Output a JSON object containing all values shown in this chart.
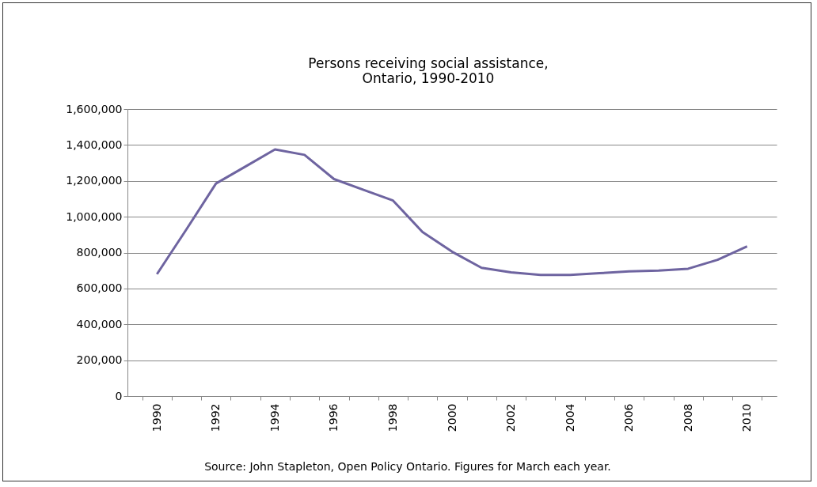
{
  "chart_data": {
    "type": "line",
    "title": "Persons receiving social assistance,\nOntario, 1990-2010",
    "categories": [
      "1990",
      null,
      "1992",
      null,
      "1994",
      null,
      "1996",
      null,
      "1998",
      null,
      "2000",
      null,
      "2002",
      null,
      "2004",
      null,
      "2006",
      null,
      "2008",
      null,
      "2010"
    ],
    "series": [
      {
        "color": "#6e64a0",
        "values": [
          680000,
          930000,
          1185000,
          1280000,
          1375000,
          1345000,
          1210000,
          1150000,
          1090000,
          915000,
          805000,
          715000,
          690000,
          675000,
          675000,
          685000,
          695000,
          700000,
          710000,
          760000,
          835000
        ]
      }
    ],
    "ylim": [
      0,
      1600000
    ],
    "yticks": [
      {
        "value": 0,
        "label": "0"
      },
      {
        "value": 200000,
        "label": "200,000"
      },
      {
        "value": 400000,
        "label": "400,000"
      },
      {
        "value": 600000,
        "label": "600,000"
      },
      {
        "value": 800000,
        "label": "800,000"
      },
      {
        "value": 1000000,
        "label": "1,000,000"
      },
      {
        "value": 1200000,
        "label": "1,200,000"
      },
      {
        "value": 1400000,
        "label": "1,400,000"
      },
      {
        "value": 1600000,
        "label": "1,600,000"
      }
    ],
    "grid": "y",
    "marker": "none",
    "line_style": "solid",
    "annotations": [
      "Source: John Stapleton, Open Policy Ontario. Figures for March each year."
    ]
  }
}
